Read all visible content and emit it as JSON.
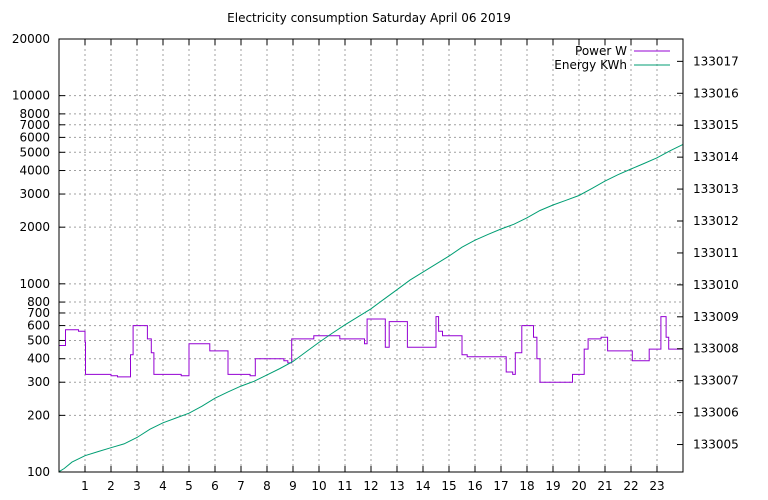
{
  "chart_data": {
    "type": "line",
    "title": "Electricity consumption Saturday April 06 2019",
    "legend_position": "top-right",
    "grid": true,
    "x_axis": {
      "range": [
        0,
        24
      ],
      "tick_values": [
        1,
        2,
        3,
        4,
        5,
        6,
        7,
        8,
        9,
        10,
        11,
        12,
        13,
        14,
        15,
        16,
        17,
        18,
        19,
        20,
        21,
        22,
        23
      ],
      "tick_labels": [
        "1",
        "2",
        "3",
        "4",
        "5",
        "6",
        "7",
        "8",
        "9",
        "10",
        "11",
        "12",
        "13",
        "14",
        "15",
        "16",
        "17",
        "18",
        "19",
        "20",
        "21",
        "22",
        "23"
      ]
    },
    "y_axis_left": {
      "scale": "log",
      "range": [
        100,
        20000
      ],
      "tick_values": [
        100,
        200,
        300,
        400,
        500,
        600,
        700,
        800,
        1000,
        2000,
        3000,
        4000,
        5000,
        6000,
        7000,
        8000,
        10000,
        20000
      ],
      "tick_labels": [
        "100",
        "200",
        "300",
        "400",
        "500",
        "600",
        "700",
        "800",
        "1000",
        "2000",
        "3000",
        "4000",
        "5000",
        "6000",
        "7000",
        "8000",
        "10000",
        "20000"
      ]
    },
    "y_axis_right": {
      "scale": "linear",
      "range": [
        133004.14,
        133017.7
      ],
      "tick_values": [
        133005,
        133006,
        133007,
        133008,
        133009,
        133010,
        133011,
        133012,
        133013,
        133014,
        133015,
        133016,
        133017
      ],
      "tick_labels": [
        "133005",
        "133006",
        "133007",
        "133008",
        "133009",
        "133010",
        "133011",
        "133012",
        "133013",
        "133014",
        "133015",
        "133016",
        "133017"
      ]
    },
    "series": [
      {
        "name": "Power W",
        "color": "#9400d3",
        "axis": "left",
        "style": "step",
        "points": [
          [
            0.0,
            470
          ],
          [
            0.25,
            570
          ],
          [
            0.75,
            560
          ],
          [
            1.0,
            490
          ],
          [
            1.02,
            330
          ],
          [
            2.0,
            325
          ],
          [
            2.25,
            320
          ],
          [
            2.75,
            420
          ],
          [
            2.85,
            600
          ],
          [
            3.4,
            510
          ],
          [
            3.55,
            430
          ],
          [
            3.65,
            330
          ],
          [
            4.7,
            325
          ],
          [
            5.0,
            480
          ],
          [
            5.8,
            440
          ],
          [
            6.5,
            330
          ],
          [
            7.35,
            325
          ],
          [
            7.55,
            400
          ],
          [
            8.65,
            390
          ],
          [
            8.8,
            380
          ],
          [
            8.95,
            510
          ],
          [
            9.8,
            530
          ],
          [
            10.8,
            510
          ],
          [
            11.75,
            480
          ],
          [
            11.85,
            650
          ],
          [
            12.55,
            460
          ],
          [
            12.7,
            630
          ],
          [
            13.4,
            460
          ],
          [
            14.5,
            670
          ],
          [
            14.6,
            560
          ],
          [
            14.75,
            530
          ],
          [
            15.5,
            420
          ],
          [
            15.7,
            410
          ],
          [
            17.2,
            340
          ],
          [
            17.45,
            330
          ],
          [
            17.55,
            430
          ],
          [
            17.8,
            600
          ],
          [
            18.25,
            520
          ],
          [
            18.38,
            400
          ],
          [
            18.5,
            300
          ],
          [
            19.75,
            330
          ],
          [
            20.2,
            450
          ],
          [
            20.35,
            510
          ],
          [
            20.85,
            520
          ],
          [
            21.1,
            440
          ],
          [
            22.05,
            390
          ],
          [
            22.7,
            450
          ],
          [
            23.15,
            670
          ],
          [
            23.35,
            520
          ],
          [
            23.45,
            450
          ],
          [
            24.0,
            450
          ]
        ]
      },
      {
        "name": "Energy KWh",
        "color": "#009e73",
        "axis": "right",
        "style": "line",
        "points": [
          [
            0,
            133004.15
          ],
          [
            0.2,
            133004.25
          ],
          [
            0.5,
            133004.45
          ],
          [
            1,
            133004.65
          ],
          [
            1.5,
            133004.78
          ],
          [
            2,
            133004.9
          ],
          [
            2.5,
            133005.02
          ],
          [
            3,
            133005.22
          ],
          [
            3.5,
            133005.48
          ],
          [
            4,
            133005.68
          ],
          [
            4.5,
            133005.83
          ],
          [
            5,
            133005.98
          ],
          [
            5.5,
            133006.2
          ],
          [
            6,
            133006.45
          ],
          [
            6.5,
            133006.65
          ],
          [
            7,
            133006.83
          ],
          [
            7.5,
            133006.98
          ],
          [
            8,
            133007.18
          ],
          [
            8.5,
            133007.38
          ],
          [
            9,
            133007.6
          ],
          [
            9.5,
            133007.9
          ],
          [
            10,
            133008.2
          ],
          [
            10.5,
            133008.48
          ],
          [
            11,
            133008.75
          ],
          [
            11.5,
            133009.0
          ],
          [
            12,
            133009.25
          ],
          [
            12.5,
            133009.55
          ],
          [
            13,
            133009.85
          ],
          [
            13.5,
            133010.15
          ],
          [
            14,
            133010.4
          ],
          [
            14.5,
            133010.65
          ],
          [
            15,
            133010.9
          ],
          [
            15.5,
            133011.18
          ],
          [
            16,
            133011.4
          ],
          [
            16.5,
            133011.58
          ],
          [
            17,
            133011.75
          ],
          [
            17.5,
            133011.9
          ],
          [
            18,
            133012.1
          ],
          [
            18.5,
            133012.33
          ],
          [
            19,
            133012.5
          ],
          [
            19.5,
            133012.65
          ],
          [
            20,
            133012.8
          ],
          [
            20.5,
            133013.02
          ],
          [
            21,
            133013.25
          ],
          [
            21.5,
            133013.45
          ],
          [
            22,
            133013.63
          ],
          [
            22.5,
            133013.8
          ],
          [
            23,
            133013.98
          ],
          [
            23.5,
            133014.2
          ],
          [
            24,
            133014.4
          ]
        ]
      }
    ]
  }
}
